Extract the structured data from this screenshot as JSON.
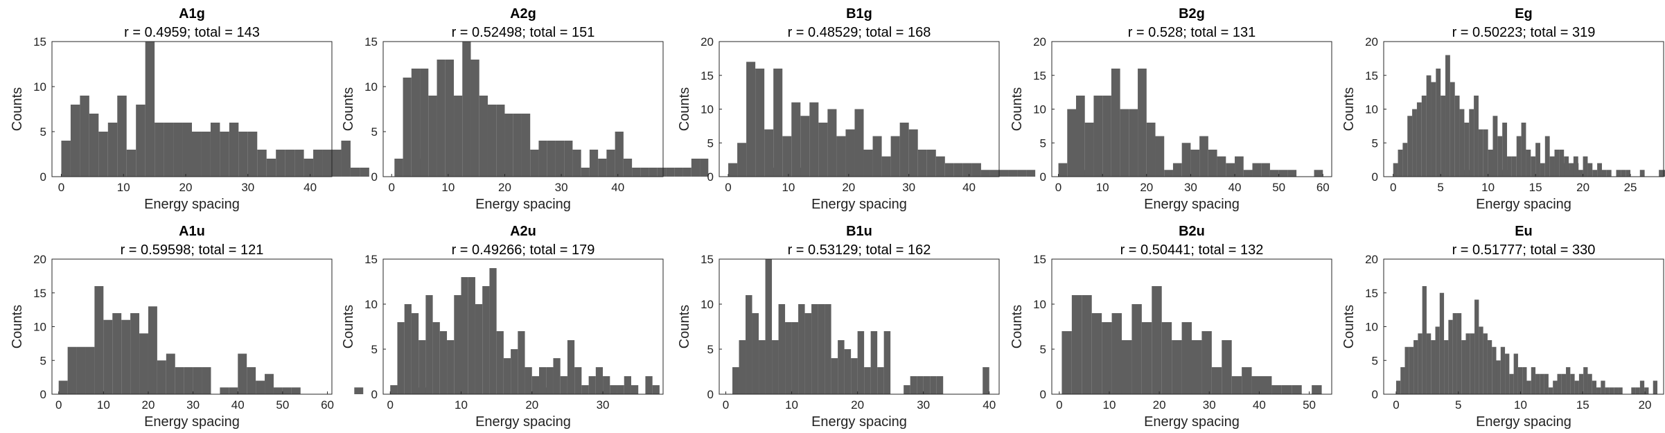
{
  "chart_data": [
    {
      "type": "bar",
      "title": "A1g",
      "subtitle": "r = 0.4959; total = 143",
      "xlabel": "Energy spacing",
      "ylabel": "Counts",
      "xlim": [
        -1.5,
        43.5
      ],
      "ylim": [
        0,
        15
      ],
      "xticks": [
        0,
        10,
        20,
        30,
        40
      ],
      "yticks": [
        0,
        5,
        10,
        15
      ],
      "bin_start": 0,
      "bin_width": 1.5,
      "values": [
        4,
        8,
        9,
        7,
        5,
        6,
        9,
        3,
        8,
        15,
        6,
        6,
        6,
        6,
        5,
        5,
        6,
        5,
        6,
        5,
        5,
        3,
        2,
        3,
        3,
        3,
        2,
        3,
        3,
        3,
        4,
        1,
        1,
        0,
        0,
        0,
        0,
        0,
        2
      ]
    },
    {
      "type": "bar",
      "title": "A2g",
      "subtitle": "r = 0.52498; total = 151",
      "xlabel": "Energy spacing",
      "ylabel": "Counts",
      "xlim": [
        -1.5,
        48
      ],
      "ylim": [
        0,
        15
      ],
      "xticks": [
        0,
        10,
        20,
        30,
        40
      ],
      "yticks": [
        0,
        5,
        10,
        15
      ],
      "bin_start": 0.5,
      "bin_width": 1.5,
      "values": [
        2,
        11,
        12,
        12,
        9,
        13,
        13,
        9,
        15,
        13,
        9,
        8,
        8,
        7,
        7,
        7,
        3,
        4,
        4,
        4,
        4,
        3,
        1,
        3,
        2,
        3,
        5,
        2,
        1,
        1,
        1,
        1,
        1,
        1,
        1,
        2,
        2,
        0,
        0,
        0,
        0,
        0,
        0,
        0,
        1,
        0,
        0,
        1
      ]
    },
    {
      "type": "bar",
      "title": "B1g",
      "subtitle": "r = 0.48529; total = 168",
      "xlabel": "Energy spacing",
      "ylabel": "Counts",
      "xlim": [
        -1.5,
        45
      ],
      "ylim": [
        0,
        20
      ],
      "xticks": [
        0,
        10,
        20,
        30,
        40
      ],
      "yticks": [
        0,
        5,
        10,
        15,
        20
      ],
      "bin_start": 0,
      "bin_width": 1.5,
      "values": [
        2,
        5,
        17,
        16,
        7,
        16,
        6,
        11,
        9,
        11,
        8,
        10,
        6,
        7,
        10,
        4,
        6,
        3,
        6,
        8,
        7,
        4,
        4,
        3,
        2,
        2,
        2,
        2,
        1,
        1,
        1,
        1,
        1,
        1,
        0,
        0,
        0,
        0,
        0,
        1
      ]
    },
    {
      "type": "bar",
      "title": "B2g",
      "subtitle": "r = 0.528; total = 131",
      "xlabel": "Energy spacing",
      "ylabel": "Counts",
      "xlim": [
        -1.5,
        62
      ],
      "ylim": [
        0,
        20
      ],
      "xticks": [
        0,
        10,
        20,
        30,
        40,
        50,
        60
      ],
      "yticks": [
        0,
        5,
        10,
        15,
        20
      ],
      "bin_start": 0,
      "bin_width": 2,
      "values": [
        2,
        10,
        12,
        8,
        12,
        12,
        16,
        10,
        10,
        16,
        8,
        6,
        1,
        2,
        5,
        4,
        6,
        4,
        3,
        2,
        3,
        1,
        2,
        2,
        1,
        1,
        1,
        0,
        0,
        1,
        0,
        0,
        0,
        0,
        0,
        0,
        0,
        0,
        0,
        0,
        0,
        0,
        0,
        0,
        0,
        0,
        1,
        0,
        0,
        0,
        1,
        0,
        0,
        0,
        0,
        0,
        0,
        2,
        2
      ]
    },
    {
      "type": "bar",
      "title": "Eg",
      "subtitle": "r = 0.50223; total = 319",
      "xlabel": "Energy spacing",
      "ylabel": "Counts",
      "xlim": [
        -1,
        28.5
      ],
      "ylim": [
        0,
        20
      ],
      "xticks": [
        0,
        5,
        10,
        15,
        20,
        25
      ],
      "yticks": [
        0,
        5,
        10,
        15,
        20
      ],
      "bin_start": 0,
      "bin_width": 0.5,
      "values": [
        2,
        4,
        5,
        9,
        10,
        11,
        12,
        15,
        14,
        16,
        12,
        18,
        14,
        12,
        10,
        8,
        10,
        12,
        7,
        7,
        4,
        9,
        6,
        8,
        3,
        3,
        6,
        8,
        4,
        3,
        5,
        2,
        6,
        3,
        4,
        4,
        3,
        1,
        3,
        1,
        3,
        2,
        1,
        2,
        1,
        1,
        0,
        1,
        1,
        1,
        0,
        0,
        1,
        0,
        0,
        0,
        1,
        1
      ]
    },
    {
      "type": "bar",
      "title": "A1u",
      "subtitle": "r = 0.59598; total = 121",
      "xlabel": "Energy spacing",
      "ylabel": "Counts",
      "xlim": [
        -1.5,
        61
      ],
      "ylim": [
        0,
        20
      ],
      "xticks": [
        0,
        10,
        20,
        30,
        40,
        50,
        60
      ],
      "yticks": [
        0,
        5,
        10,
        15,
        20
      ],
      "bin_start": 0,
      "bin_width": 2,
      "values": [
        2,
        7,
        7,
        7,
        16,
        11,
        12,
        11,
        12,
        9,
        13,
        5,
        6,
        4,
        4,
        4,
        4,
        0,
        1,
        1,
        6,
        4,
        2,
        3,
        1,
        1,
        1,
        0,
        0,
        0,
        0,
        0,
        0,
        1,
        0,
        0,
        0,
        0,
        0,
        0,
        1,
        0,
        0,
        0,
        0,
        0,
        0,
        0,
        0,
        0,
        0,
        0,
        0,
        0,
        1
      ]
    },
    {
      "type": "bar",
      "title": "A2u",
      "subtitle": "r = 0.49266; total = 179",
      "xlabel": "Energy spacing",
      "ylabel": "Counts",
      "xlim": [
        -1,
        38.5
      ],
      "ylim": [
        0,
        15
      ],
      "xticks": [
        0,
        10,
        20,
        30
      ],
      "yticks": [
        0,
        5,
        10,
        15
      ],
      "bin_start": 0,
      "bin_width": 1,
      "values": [
        1,
        8,
        10,
        9,
        6,
        11,
        8,
        7,
        6,
        11,
        13,
        13,
        10,
        12,
        14,
        7,
        4,
        5,
        7,
        3,
        2,
        3,
        3,
        4,
        2,
        6,
        3,
        1,
        2,
        3,
        2,
        1,
        1,
        2,
        1,
        0,
        2,
        1
      ]
    },
    {
      "type": "bar",
      "title": "B1u",
      "subtitle": "r = 0.53129; total = 162",
      "xlabel": "Energy spacing",
      "ylabel": "Counts",
      "xlim": [
        -1,
        41.5
      ],
      "ylim": [
        0,
        15
      ],
      "xticks": [
        0,
        10,
        20,
        30,
        40
      ],
      "yticks": [
        0,
        5,
        10,
        15
      ],
      "bin_start": 0,
      "bin_width": 1,
      "values": [
        0,
        3,
        6,
        11,
        9,
        6,
        15,
        6,
        10,
        8,
        8,
        10,
        9,
        10,
        10,
        10,
        4,
        6,
        5,
        4,
        7,
        3,
        7,
        3,
        7,
        0,
        0,
        1,
        2,
        2,
        2,
        2,
        2,
        0,
        0,
        0,
        0,
        0,
        0,
        3
      ]
    },
    {
      "type": "bar",
      "title": "B2u",
      "subtitle": "r = 0.50441; total = 132",
      "xlabel": "Energy spacing",
      "ylabel": "Counts",
      "xlim": [
        -1.5,
        54.5
      ],
      "ylim": [
        0,
        15
      ],
      "xticks": [
        0,
        10,
        20,
        30,
        40,
        50
      ],
      "yticks": [
        0,
        5,
        10,
        15
      ],
      "bin_start": 0.5,
      "bin_width": 2,
      "values": [
        7,
        11,
        11,
        9,
        8,
        9,
        6,
        10,
        8,
        12,
        8,
        6,
        8,
        6,
        7,
        3,
        6,
        2,
        3,
        2,
        2,
        1,
        1,
        1,
        0,
        1
      ]
    },
    {
      "type": "bar",
      "title": "Eu",
      "subtitle": "r = 0.51777; total = 330",
      "xlabel": "Energy spacing",
      "ylabel": "Counts",
      "xlim": [
        -1,
        21.5
      ],
      "ylim": [
        0,
        20
      ],
      "xticks": [
        0,
        5,
        10,
        15,
        20
      ],
      "yticks": [
        0,
        5,
        10,
        15,
        20
      ],
      "bin_start": 0,
      "bin_width": 0.35,
      "values": [
        2,
        4,
        7,
        7,
        8,
        9,
        16,
        9,
        8,
        10,
        15,
        8,
        11,
        12,
        12,
        8,
        9,
        9,
        14,
        10,
        9,
        8,
        7,
        5,
        7,
        6,
        3,
        6,
        4,
        4,
        2,
        4,
        3,
        3,
        3,
        1,
        2,
        3,
        3,
        4,
        3,
        2,
        3,
        4,
        3,
        2,
        1,
        2,
        1,
        1,
        1,
        1,
        0,
        0,
        1,
        1,
        2,
        1,
        0,
        2
      ]
    }
  ]
}
